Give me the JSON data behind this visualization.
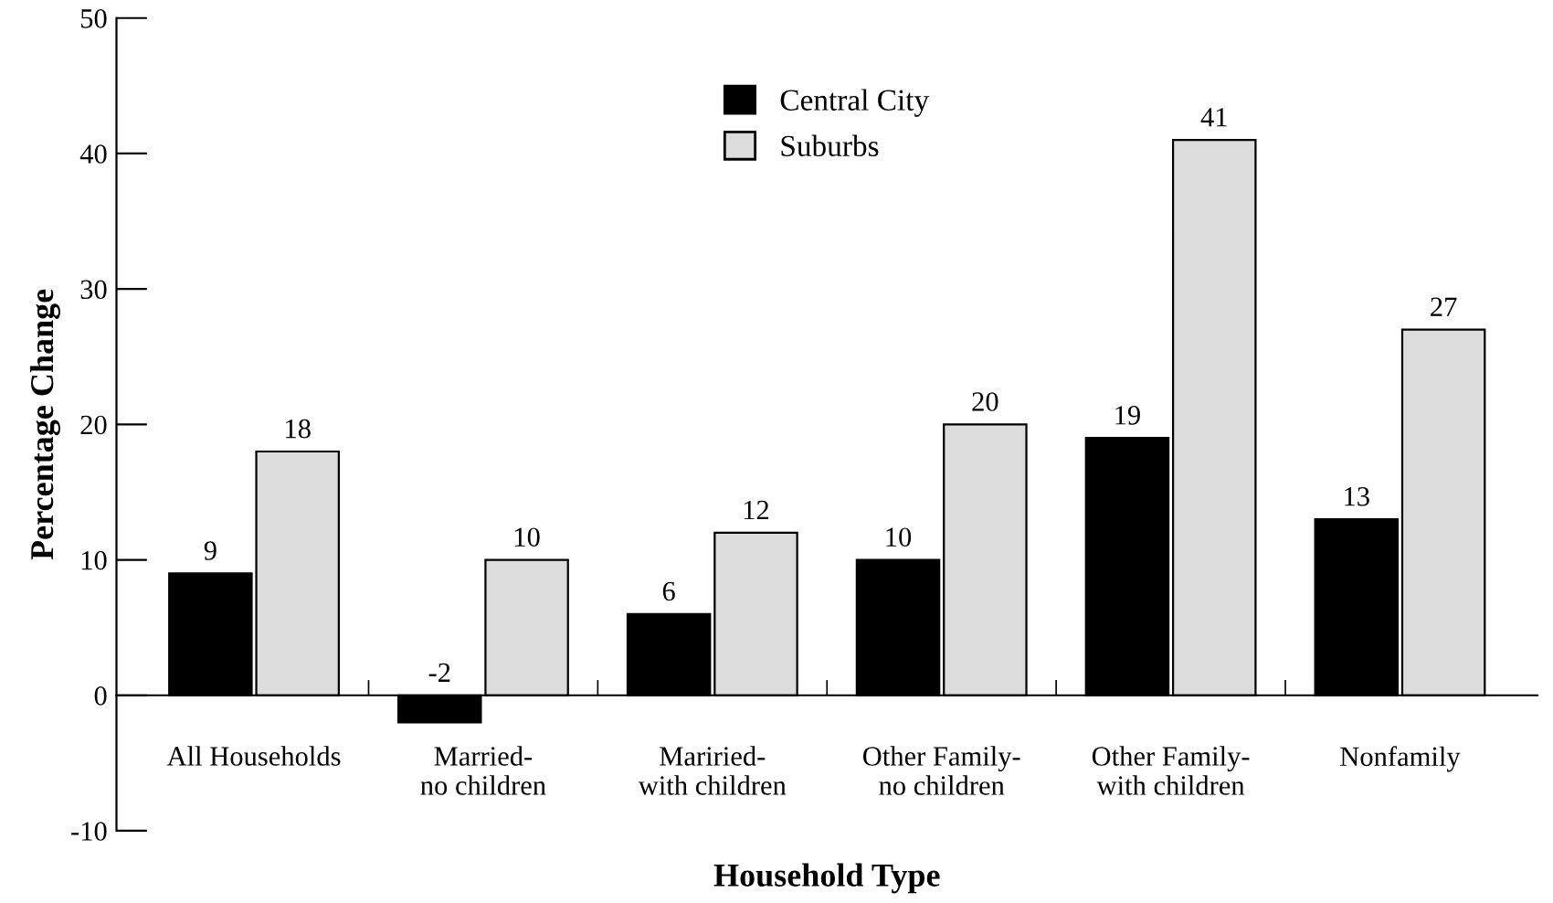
{
  "chart_data": {
    "type": "bar",
    "xlabel": "Household Type",
    "ylabel": "Percentage Change",
    "categories": [
      "All Households",
      "Married-\nno children",
      "Mariried-\nwith children",
      "Other Family-\nno children",
      "Other Family-\nwith children",
      "Nonfamily"
    ],
    "series": [
      {
        "name": "Central City",
        "color": "#000000",
        "values": [
          9,
          -2,
          6,
          10,
          19,
          13
        ]
      },
      {
        "name": "Suburbs",
        "color": "#dcdcdc",
        "values": [
          18,
          10,
          12,
          20,
          41,
          27
        ]
      }
    ],
    "ylim": [
      -10,
      50
    ],
    "yticks": [
      {
        "value": -10,
        "label": "-10"
      },
      0,
      10,
      20,
      30,
      40,
      50
    ],
    "data_labels": true,
    "legend": "top",
    "grid": false
  }
}
